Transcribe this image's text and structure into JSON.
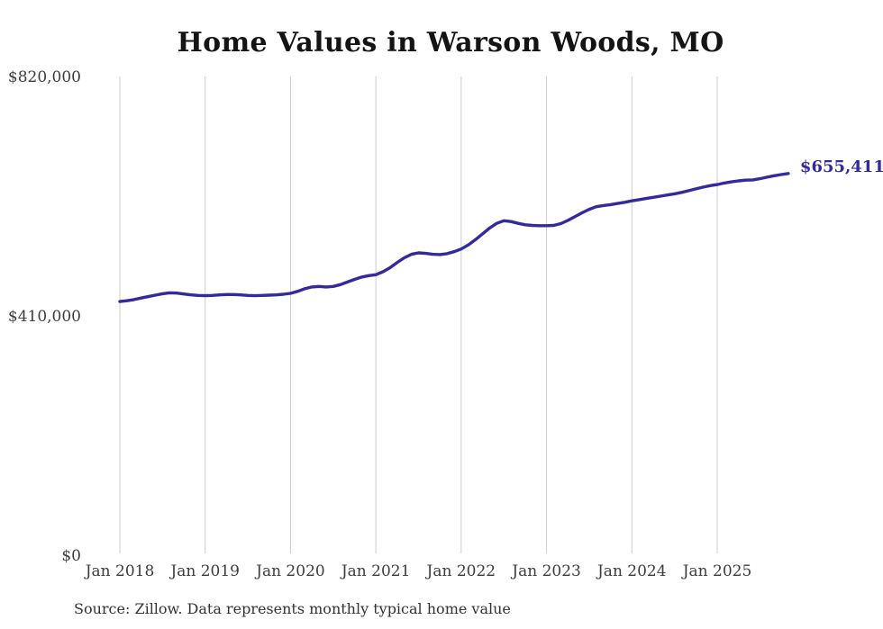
{
  "title": "Home Values in Warson Woods, MO",
  "source_note": "Source: Zillow. Data represents monthly typical home value",
  "end_label": "$655,411",
  "colors": {
    "line": "#322a9d",
    "grid": "#cccccc",
    "end_label": "#322a9d",
    "axis_text": "#3d3d3d",
    "title_text": "#141414"
  },
  "y_axis": {
    "ticks": [
      {
        "label": "$820,000",
        "value": 820000
      },
      {
        "label": "$410,000",
        "value": 410000
      },
      {
        "label": "$0",
        "value": 0
      }
    ]
  },
  "x_axis": {
    "ticks": [
      "Jan 2018",
      "Jan 2019",
      "Jan 2020",
      "Jan 2021",
      "Jan 2022",
      "Jan 2023",
      "Jan 2024",
      "Jan 2025"
    ]
  },
  "chart_data": {
    "type": "line",
    "title": "Home Values in Warson Woods, MO",
    "xlabel": "",
    "ylabel": "",
    "ylim": [
      0,
      820000
    ],
    "grid": "vertical-only",
    "legend": "none",
    "series_name": "Typical home value",
    "end_annotation": "$655,411",
    "x": [
      "2018-01",
      "2018-02",
      "2018-03",
      "2018-04",
      "2018-05",
      "2018-06",
      "2018-07",
      "2018-08",
      "2018-09",
      "2018-10",
      "2018-11",
      "2018-12",
      "2019-01",
      "2019-02",
      "2019-03",
      "2019-04",
      "2019-05",
      "2019-06",
      "2019-07",
      "2019-08",
      "2019-09",
      "2019-10",
      "2019-11",
      "2019-12",
      "2020-01",
      "2020-02",
      "2020-03",
      "2020-04",
      "2020-05",
      "2020-06",
      "2020-07",
      "2020-08",
      "2020-09",
      "2020-10",
      "2020-11",
      "2020-12",
      "2021-01",
      "2021-02",
      "2021-03",
      "2021-04",
      "2021-05",
      "2021-06",
      "2021-07",
      "2021-08",
      "2021-09",
      "2021-10",
      "2021-11",
      "2021-12",
      "2022-01",
      "2022-02",
      "2022-03",
      "2022-04",
      "2022-05",
      "2022-06",
      "2022-07",
      "2022-08",
      "2022-09",
      "2022-10",
      "2022-11",
      "2022-12",
      "2023-01",
      "2023-02",
      "2023-03",
      "2023-04",
      "2023-05",
      "2023-06",
      "2023-07",
      "2023-08",
      "2023-09",
      "2023-10",
      "2023-11",
      "2023-12",
      "2024-01",
      "2024-02",
      "2024-03",
      "2024-04",
      "2024-05",
      "2024-06",
      "2024-07",
      "2024-08",
      "2024-09",
      "2024-10",
      "2024-11",
      "2024-12",
      "2025-01",
      "2025-02",
      "2025-03",
      "2025-04",
      "2025-05",
      "2025-06",
      "2025-07",
      "2025-08",
      "2025-09",
      "2025-10",
      "2025-11"
    ],
    "values": [
      436000,
      437500,
      439500,
      442000,
      444500,
      447000,
      449500,
      451000,
      450500,
      449000,
      447500,
      446500,
      446000,
      446500,
      447500,
      448000,
      448000,
      447500,
      446500,
      446000,
      446500,
      447000,
      447500,
      448500,
      450000,
      453500,
      458000,
      461000,
      462000,
      461000,
      462000,
      465000,
      469500,
      474000,
      478000,
      480500,
      482000,
      487000,
      494000,
      503000,
      511000,
      517000,
      519500,
      518500,
      517000,
      516500,
      518000,
      521500,
      526000,
      533000,
      542000,
      552000,
      562000,
      570000,
      574500,
      573000,
      570000,
      567500,
      566500,
      566000,
      566000,
      566500,
      569500,
      575000,
      581500,
      588000,
      594000,
      598500,
      600500,
      602000,
      604000,
      606000,
      608500,
      610500,
      612500,
      614500,
      616500,
      618500,
      620500,
      623000,
      626000,
      629000,
      632000,
      634500,
      636500,
      639000,
      641000,
      642800,
      644000,
      644500,
      646500,
      649000,
      651500,
      653500,
      655411
    ]
  }
}
